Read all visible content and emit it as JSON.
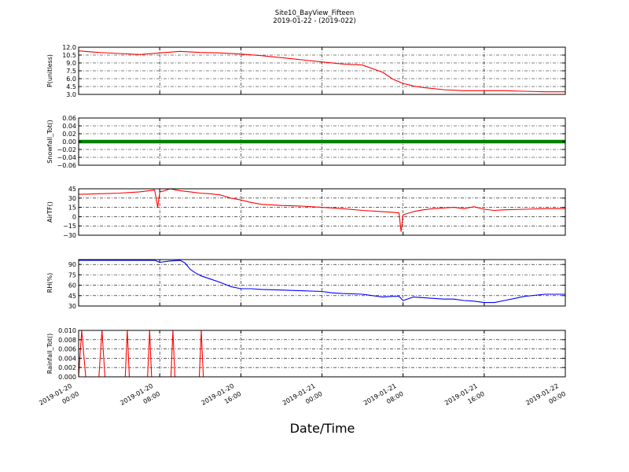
{
  "figure": {
    "title": "Site10_BayView_Fifteen",
    "subtitle": "2019-01-22 - (2019-022)",
    "xlabel": "Date/Time"
  },
  "chart_data": [
    {
      "type": "line",
      "ylabel": "P(unitless)",
      "ylim": [
        3.0,
        12.0
      ],
      "yticks": [
        "12.0",
        "10.5",
        "9.0",
        "7.5",
        "6.0",
        "4.5",
        "3.0"
      ],
      "ytick_values": [
        12.0,
        10.5,
        9.0,
        7.5,
        6.0,
        4.5,
        3.0
      ],
      "color": "#ff0000",
      "grid": true,
      "x_hours": [
        0,
        2,
        4,
        6,
        8,
        10,
        12,
        14,
        16,
        18,
        20,
        22,
        24,
        26,
        28,
        30,
        31,
        32,
        33,
        34,
        36,
        38,
        40,
        42,
        44,
        46,
        48
      ],
      "values": [
        11.3,
        11.0,
        10.8,
        10.6,
        10.9,
        11.2,
        11.0,
        10.9,
        10.7,
        10.4,
        10.0,
        9.6,
        9.2,
        8.8,
        8.6,
        7.2,
        5.9,
        5.1,
        4.6,
        4.3,
        3.9,
        3.7,
        3.7,
        3.7,
        3.6,
        3.5,
        3.5
      ]
    },
    {
      "type": "scatter",
      "ylabel": "Snowfall_Tot()",
      "ylim": [
        -0.06,
        0.06
      ],
      "yticks": [
        "0.06",
        "0.04",
        "0.02",
        "0.00",
        "−0.02",
        "−0.04",
        "−0.06"
      ],
      "ytick_values": [
        0.06,
        0.04,
        0.02,
        0.0,
        -0.02,
        -0.04,
        -0.06
      ],
      "color": "#008000",
      "grid": true,
      "x_hours": [
        0,
        48
      ],
      "values": [
        0.0,
        0.0
      ]
    },
    {
      "type": "line",
      "ylabel": "AirTF()",
      "ylim": [
        -30,
        45
      ],
      "yticks": [
        "45",
        "30",
        "15",
        "0",
        "−15",
        "−30"
      ],
      "ytick_values": [
        45,
        30,
        15,
        0,
        -15,
        -30
      ],
      "color": "#ff0000",
      "grid": true,
      "x_hours": [
        0,
        2,
        4,
        6,
        7.5,
        7.8,
        8.0,
        8.3,
        9.0,
        10.0,
        11.0,
        12.0,
        13.0,
        14.0,
        15.0,
        16.0,
        17.0,
        18.0,
        20.0,
        22.0,
        24.0,
        26.0,
        28.0,
        30.0,
        31.0,
        31.6,
        31.8,
        32.0,
        33.0,
        34.0,
        35.0,
        36.0,
        37.0,
        38.0,
        39.0,
        40.0,
        41.0,
        42.0,
        44.0,
        46.0,
        48.0
      ],
      "values": [
        36,
        37,
        38,
        40,
        43,
        15,
        40,
        41,
        45,
        42,
        40,
        38,
        37,
        35,
        30,
        27,
        23,
        20,
        18,
        17,
        15,
        13,
        10,
        8,
        7,
        6,
        -24,
        3,
        8,
        11,
        13,
        14,
        15,
        13,
        16,
        12,
        10,
        11,
        12,
        13,
        13
      ]
    },
    {
      "type": "line",
      "ylabel": "RH(%)",
      "ylim": [
        30,
        97
      ],
      "yticks": [
        "90",
        "75",
        "60",
        "45",
        "30"
      ],
      "ytick_values": [
        90,
        75,
        60,
        45,
        30
      ],
      "color": "#0000ff",
      "grid": true,
      "x_hours": [
        0,
        4,
        7.5,
        8.0,
        9.0,
        10.0,
        10.5,
        11.0,
        11.5,
        12.0,
        13.0,
        14.0,
        15.0,
        16.0,
        17.0,
        18.0,
        20.0,
        22.0,
        24.0,
        25.0,
        26.0,
        28.0,
        29.0,
        30.0,
        31.0,
        31.6,
        32.0,
        33.0,
        34.0,
        35.0,
        36.0,
        37.0,
        38.0,
        39.0,
        40.0,
        41.0,
        42.0,
        44.0,
        46.0,
        48.0
      ],
      "values": [
        96,
        96,
        96,
        93,
        95,
        96,
        92,
        83,
        78,
        74,
        69,
        64,
        58,
        55,
        55,
        54,
        53,
        52,
        51,
        49,
        48,
        47,
        45,
        43,
        44,
        44,
        38,
        43,
        42,
        41,
        40,
        40,
        38,
        37,
        35,
        35,
        38,
        44,
        47,
        47
      ]
    },
    {
      "type": "line",
      "ylabel": "Rainfall_Tot()",
      "ylim": [
        0.0,
        0.01
      ],
      "yticks": [
        "0.010",
        "0.008",
        "0.006",
        "0.004",
        "0.002",
        "0.000"
      ],
      "ytick_values": [
        0.01,
        0.008,
        0.006,
        0.004,
        0.002,
        0.0
      ],
      "color": "#ff0000",
      "grid": true,
      "x_hours": [
        0,
        0.3,
        0.7,
        2.0,
        2.3,
        2.6,
        4.6,
        4.8,
        5.0,
        6.8,
        7.0,
        7.2,
        9.1,
        9.3,
        9.5,
        11.9,
        12.1,
        12.3,
        48
      ],
      "values": [
        0,
        0.01,
        0,
        0,
        0.01,
        0,
        0,
        0.01,
        0,
        0,
        0.01,
        0,
        0,
        0.01,
        0,
        0,
        0.01,
        0,
        0
      ]
    }
  ],
  "x_axis": {
    "range_hours": [
      0,
      48
    ],
    "ticks": [
      {
        "hours": 0,
        "line1": "2019-01-20",
        "line2": "00:00"
      },
      {
        "hours": 8,
        "line1": "2019-01-20",
        "line2": "08:00"
      },
      {
        "hours": 16,
        "line1": "2019-01-20",
        "line2": "16:00"
      },
      {
        "hours": 24,
        "line1": "2019-01-21",
        "line2": "00:00"
      },
      {
        "hours": 32,
        "line1": "2019-01-21",
        "line2": "08:00"
      },
      {
        "hours": 40,
        "line1": "2019-01-21",
        "line2": "16:00"
      },
      {
        "hours": 48,
        "line1": "2019-01-22",
        "line2": "00:00"
      }
    ]
  }
}
